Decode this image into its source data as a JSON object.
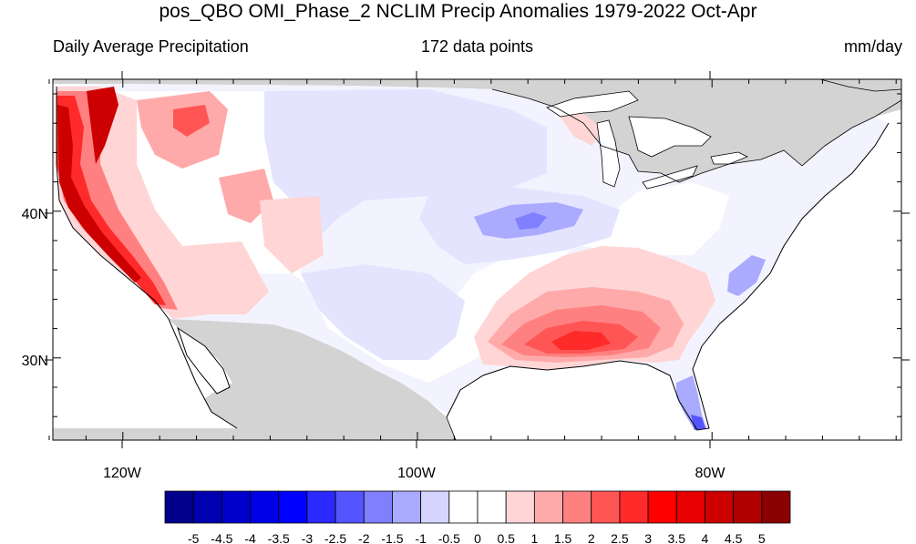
{
  "title": "pos_QBO OMI_Phase_2 NCLIM Precip Anomalies 1979-2022 Oct-Apr",
  "subtitle_left": "Daily Average Precipitation",
  "subtitle_center": "172 data points",
  "subtitle_right": "mm/day",
  "lat_labels": [
    "40N",
    "30N"
  ],
  "lon_labels": [
    "120W",
    "100W",
    "80W"
  ],
  "colorbar": {
    "labels": [
      "-5",
      "-4.5",
      "-4",
      "-3.5",
      "-3",
      "-2.5",
      "-2",
      "-1.5",
      "-1",
      "-0.5",
      "0",
      "0.5",
      "1",
      "1.5",
      "2",
      "2.5",
      "3",
      "3.5",
      "4",
      "4.5",
      "5"
    ],
    "colors": [
      "#00008b",
      "#0000b0",
      "#0000cc",
      "#0000e6",
      "#0000ff",
      "#2a2aff",
      "#5555ff",
      "#8080ff",
      "#aaaaff",
      "#d5d5ff",
      "#ffffff",
      "#ffffff",
      "#ffd5d5",
      "#ffaaaa",
      "#ff8080",
      "#ff5555",
      "#ff2a2a",
      "#ff0000",
      "#e60000",
      "#cc0000",
      "#b00000",
      "#8b0000"
    ]
  }
}
